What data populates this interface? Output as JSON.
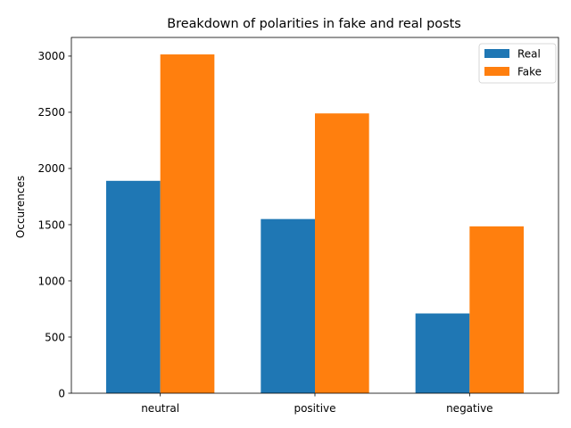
{
  "chart_data": {
    "type": "bar",
    "title": "Breakdown of polarities in fake and real posts",
    "xlabel": "",
    "ylabel": "Occurences",
    "categories": [
      "neutral",
      "positive",
      "negative"
    ],
    "series": [
      {
        "name": "Real",
        "values": [
          1890,
          1550,
          710
        ],
        "color": "#1f77b4"
      },
      {
        "name": "Fake",
        "values": [
          3015,
          2490,
          1485
        ],
        "color": "#ff7f0e"
      }
    ],
    "ylim": [
      0,
      3166
    ],
    "yticks": [
      0,
      500,
      1000,
      1500,
      2000,
      2500,
      3000
    ],
    "grid": false,
    "legend_position": "top-right"
  }
}
